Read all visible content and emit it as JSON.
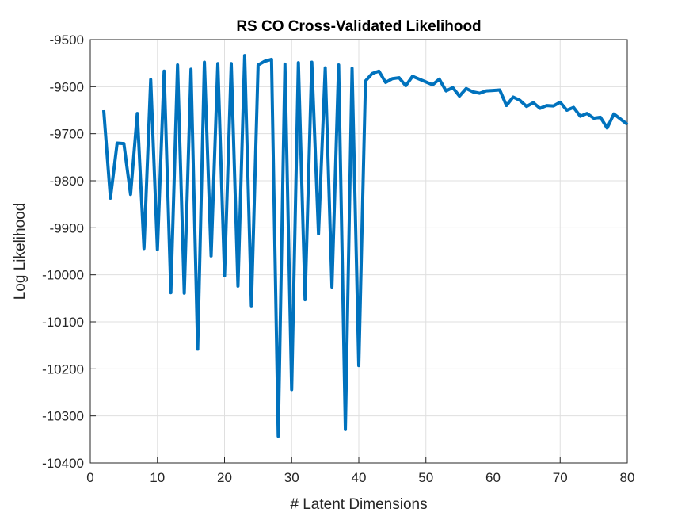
{
  "chart_data": {
    "type": "line",
    "title": "RS CO Cross-Validated Likelihood",
    "xlabel": "# Latent Dimensions",
    "ylabel": "Log Likelihood",
    "xlim": [
      0,
      80
    ],
    "ylim": [
      -10400,
      -9500
    ],
    "xticks": [
      0,
      10,
      20,
      30,
      40,
      50,
      60,
      70,
      80
    ],
    "yticks": [
      -10400,
      -10300,
      -10200,
      -10100,
      -10000,
      -9900,
      -9800,
      -9700,
      -9600,
      -9500
    ],
    "xtick_labels": [
      "0",
      "10",
      "20",
      "30",
      "40",
      "50",
      "60",
      "70",
      "80"
    ],
    "ytick_labels": [
      "-10400",
      "-10300",
      "-10200",
      "-10100",
      "-10000",
      "-9900",
      "-9800",
      "-9700",
      "-9600",
      "-9500"
    ],
    "grid": true,
    "line_color": "#0072BD",
    "series": [
      {
        "x": [
          2,
          3,
          4,
          5,
          6,
          7,
          8,
          9,
          10,
          11,
          12,
          13,
          14,
          15,
          16,
          17,
          18,
          19,
          20,
          21,
          22,
          23,
          24,
          25,
          26,
          27,
          28,
          29,
          30,
          31,
          32,
          33,
          34,
          35,
          36,
          37,
          38,
          39,
          40,
          41,
          42,
          43,
          44,
          45,
          46,
          47,
          48,
          49,
          50,
          51,
          52,
          53,
          54,
          55,
          56,
          57,
          58,
          59,
          60,
          61,
          62,
          63,
          64,
          65,
          66,
          67,
          68,
          69,
          70,
          71,
          72,
          73,
          74,
          75,
          76,
          77,
          78,
          79,
          80
        ],
        "values": [
          -9650,
          -9837,
          -9720,
          -9721,
          -9829,
          -9657,
          -9944,
          -9585,
          -9946,
          -9567,
          -10038,
          -9554,
          -10039,
          -9563,
          -10158,
          -9548,
          -9960,
          -9551,
          -10002,
          -9551,
          -10024,
          -9534,
          -10066,
          -9554,
          -9546,
          -9542,
          -10343,
          -9552,
          -10244,
          -9549,
          -10053,
          -9548,
          -9913,
          -9560,
          -10026,
          -9554,
          -10329,
          -9561,
          -10193,
          -9588,
          -9572,
          -9567,
          -9591,
          -9583,
          -9581,
          -9598,
          -9578,
          -9584,
          -9590,
          -9596,
          -9584,
          -9609,
          -9602,
          -9620,
          -9604,
          -9611,
          -9614,
          -9609,
          -9608,
          -9607,
          -9640,
          -9622,
          -9629,
          -9642,
          -9634,
          -9646,
          -9640,
          -9641,
          -9633,
          -9650,
          -9644,
          -9663,
          -9657,
          -9667,
          -9665,
          -9688,
          -9658,
          -9669,
          -9680
        ]
      }
    ]
  }
}
